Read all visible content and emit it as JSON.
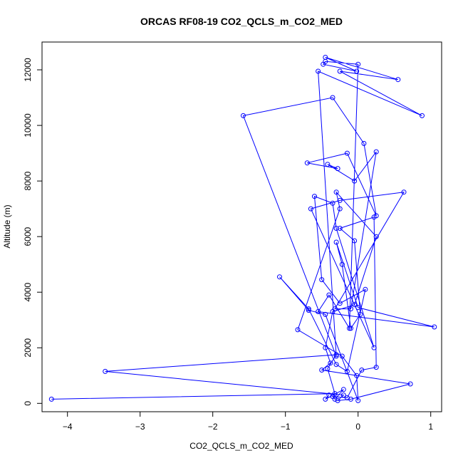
{
  "chart_data": {
    "type": "line",
    "title": "ORCAS RF08-19 CO2_QCLS_m_CO2_MED",
    "xlabel": "CO2_QCLS_m_CO2_MED",
    "ylabel": "Altitude (m)",
    "xlim": [
      -4.35,
      1.15
    ],
    "ylim": [
      -300,
      13000
    ],
    "xticks": [
      -4,
      -3,
      -2,
      -1,
      0,
      1
    ],
    "yticks": [
      0,
      2000,
      4000,
      6000,
      8000,
      10000,
      12000
    ],
    "grid": false,
    "color": "#0000ff",
    "marker": "open-circle",
    "series": [
      {
        "x": [
          -4.22,
          -0.32,
          -0.42,
          -0.3,
          -3.48,
          -0.2,
          -0.28,
          -0.1,
          0.72,
          -0.5,
          -0.38,
          -0.45,
          -0.35,
          -0.05,
          0.25,
          -0.3,
          -0.25,
          -0.83,
          -0.22,
          -0.02,
          0.0,
          -0.45,
          -0.68,
          -1.08,
          -0.68,
          -0.3,
          -0.15,
          0.1,
          -0.25,
          -0.5,
          -0.6,
          -0.35,
          -0.3,
          0.22,
          -0.65,
          -0.25,
          0.63,
          -0.32,
          -0.1,
          0.25,
          -0.05,
          -0.42,
          -0.28,
          -0.7,
          -0.15,
          0.25,
          0.08,
          -0.35,
          -1.58,
          -0.3,
          -0.55,
          0.88,
          -0.25,
          0.55,
          -0.45,
          -0.02,
          -0.48,
          -0.45,
          0.0,
          -0.12,
          -0.4,
          -0.55,
          1.05,
          0.0,
          -0.3,
          -0.22,
          -0.1,
          0.03,
          -0.05,
          -0.25,
          0.22,
          0.25,
          0.05,
          -0.15,
          -0.35,
          -0.32,
          -0.2,
          -0.45,
          -0.4
        ],
        "y": [
          150,
          350,
          1250,
          1750,
          1150,
          300,
          100,
          150,
          700,
          1200,
          1450,
          2000,
          3300,
          3550,
          6000,
          7600,
          7000,
          2650,
          1700,
          1000,
          100,
          3200,
          3350,
          4550,
          3400,
          1400,
          1150,
          4100,
          3600,
          4450,
          7450,
          7200,
          6300,
          2000,
          7000,
          7300,
          7600,
          3400,
          3400,
          9050,
          8000,
          8600,
          8450,
          8650,
          9000,
          6750,
          9350,
          11000,
          10350,
          1700,
          11950,
          10350,
          11950,
          11650,
          12450,
          11950,
          12200,
          12300,
          12200,
          2700,
          3900,
          3300,
          2750,
          3450,
          5800,
          5000,
          2700,
          3200,
          5850,
          6300,
          6700,
          1300,
          1200,
          200,
          250,
          150,
          500,
          150,
          300
        ]
      }
    ]
  }
}
